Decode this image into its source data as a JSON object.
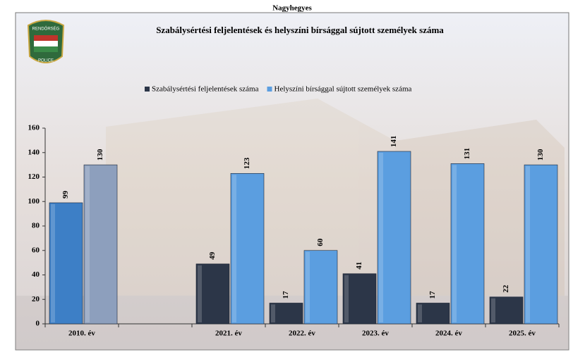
{
  "chart_data": {
    "type": "bar",
    "title": "Nagyhegyes",
    "subtitle": "Szabálysértési feljelentések és helyszíni bírsággal sújtott személyek száma",
    "logo": {
      "top_text": "RENDŐRSÉG",
      "bottom_text": "POLICE"
    },
    "categories": [
      "2010. év",
      null,
      "2021. év",
      "2022. év",
      "2023. év",
      "2024. év",
      "2025. év"
    ],
    "series": [
      {
        "name": "Szabálysértési feljelentések száma",
        "color": "#2c3648",
        "colors": [
          "#3d7fc6",
          null,
          "#2c3648",
          "#2c3648",
          "#2c3648",
          "#2c3648",
          "#2c3648"
        ],
        "values": [
          99,
          null,
          49,
          17,
          41,
          17,
          22
        ]
      },
      {
        "name": "Helyszíni bírsággal sújtott személyek száma",
        "color": "#5b9ee0",
        "colors": [
          "#8d9fbd",
          null,
          "#5b9ee0",
          "#5b9ee0",
          "#5b9ee0",
          "#5b9ee0",
          "#5b9ee0"
        ],
        "values": [
          130,
          null,
          123,
          60,
          141,
          131,
          130
        ]
      }
    ],
    "ylim": [
      0,
      160
    ],
    "yticks": [
      0,
      20,
      40,
      60,
      80,
      100,
      120,
      140,
      160
    ],
    "legend": "top",
    "data_labels": true
  }
}
